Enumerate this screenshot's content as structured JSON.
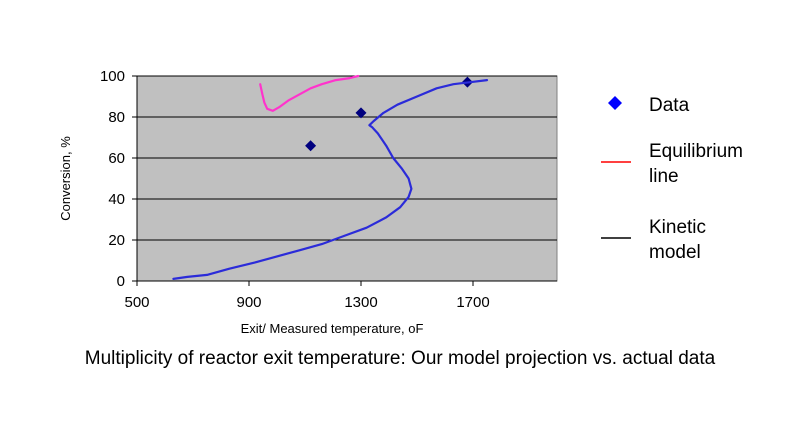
{
  "chart_data": {
    "type": "scatter",
    "xlabel": "Exit/ Measured temperature, oF",
    "ylabel": "Conversion, %",
    "xlim": [
      500,
      2000
    ],
    "ylim": [
      0,
      100
    ],
    "x_ticks": [
      500,
      900,
      1300,
      1700
    ],
    "y_ticks": [
      0,
      20,
      40,
      60,
      80,
      100
    ],
    "plot_background": "#c0c0c0",
    "grid": "horizontal",
    "legend_position": "right",
    "series": [
      {
        "name": "Data",
        "kind": "scatter",
        "marker": "diamond",
        "color": "#00007f",
        "legend_color": "#0000ff",
        "points": [
          [
            1120,
            66
          ],
          [
            1300,
            82
          ],
          [
            1680,
            97
          ]
        ]
      },
      {
        "name": "Equilibrium line",
        "kind": "line",
        "color": "#ff33cc",
        "legend_color": "#ff0000",
        "points": [
          [
            940,
            96
          ],
          [
            948,
            91
          ],
          [
            955,
            87
          ],
          [
            965,
            84
          ],
          [
            985,
            83
          ],
          [
            1010,
            85
          ],
          [
            1040,
            88
          ],
          [
            1080,
            91
          ],
          [
            1120,
            94
          ],
          [
            1160,
            96
          ],
          [
            1210,
            98
          ],
          [
            1260,
            99
          ],
          [
            1290,
            100
          ]
        ]
      },
      {
        "name": "Kinetic model",
        "kind": "line",
        "color": "#2b2bd9",
        "legend_color": "#000000",
        "points": [
          [
            630,
            1
          ],
          [
            680,
            2
          ],
          [
            750,
            3
          ],
          [
            830,
            6
          ],
          [
            920,
            9
          ],
          [
            1000,
            12
          ],
          [
            1080,
            15
          ],
          [
            1160,
            18
          ],
          [
            1240,
            22
          ],
          [
            1320,
            26
          ],
          [
            1390,
            31
          ],
          [
            1440,
            36
          ],
          [
            1470,
            41
          ],
          [
            1480,
            45
          ],
          [
            1470,
            50
          ],
          [
            1445,
            55
          ],
          [
            1415,
            60
          ],
          [
            1390,
            66
          ],
          [
            1360,
            72
          ],
          [
            1340,
            75
          ],
          [
            1330,
            76
          ],
          [
            1345,
            78
          ],
          [
            1380,
            82
          ],
          [
            1430,
            86
          ],
          [
            1500,
            90
          ],
          [
            1570,
            94
          ],
          [
            1630,
            96
          ],
          [
            1690,
            97
          ],
          [
            1750,
            98
          ]
        ]
      }
    ],
    "legend": [
      {
        "series": "Data",
        "lines": [
          "Data"
        ]
      },
      {
        "series": "Equilibrium line",
        "lines": [
          "Equilibrium",
          "line"
        ]
      },
      {
        "series": "Kinetic model",
        "lines": [
          "Kinetic",
          "model"
        ]
      }
    ]
  },
  "caption": "Multiplicity of reactor exit temperature: Our model projection vs. actual data"
}
